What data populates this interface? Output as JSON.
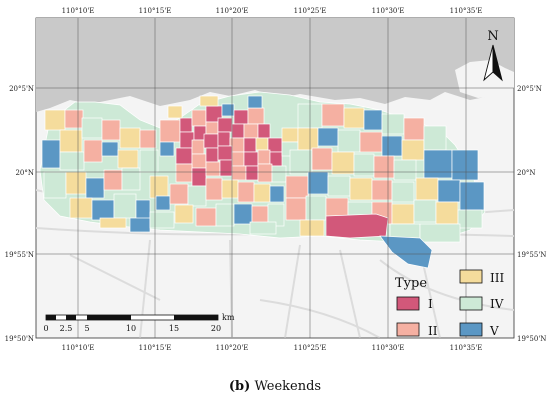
{
  "map": {
    "longitude_ticks_top": [
      "110°10'E",
      "110°15'E",
      "110°20'E",
      "110°25'E",
      "110°30'E",
      "110°35'E"
    ],
    "longitude_ticks_bottom": [
      "110°10'E",
      "110°15'E",
      "110°20'E",
      "110°25'E",
      "110°30'E",
      "110°35'E"
    ],
    "latitude_ticks_left": [
      "20°5'N",
      "20°N",
      "19°55'N",
      "19°50'N"
    ],
    "latitude_ticks_right": [
      "20°5'N",
      "20°N",
      "19°55'N",
      "19°50'N"
    ],
    "north_arrow_label": "N",
    "colors": {
      "sea": "#c9c9c9",
      "land": "#f4f4f4",
      "road": "#dedede",
      "grid": "#555555"
    }
  },
  "legend": {
    "title": "Type",
    "items": [
      {
        "label": "I",
        "color": "#d2587a"
      },
      {
        "label": "II",
        "color": "#f5b0a2"
      },
      {
        "label": "III",
        "color": "#f5dc9c"
      },
      {
        "label": "IV",
        "color": "#cde9d6"
      },
      {
        "label": "V",
        "color": "#5b97c4"
      }
    ]
  },
  "scale_bar": {
    "labels": [
      "0",
      "2.5",
      "5",
      "10",
      "15",
      "20"
    ],
    "unit": "km"
  },
  "caption": {
    "prefix": "(b)",
    "text": "Weekends"
  }
}
